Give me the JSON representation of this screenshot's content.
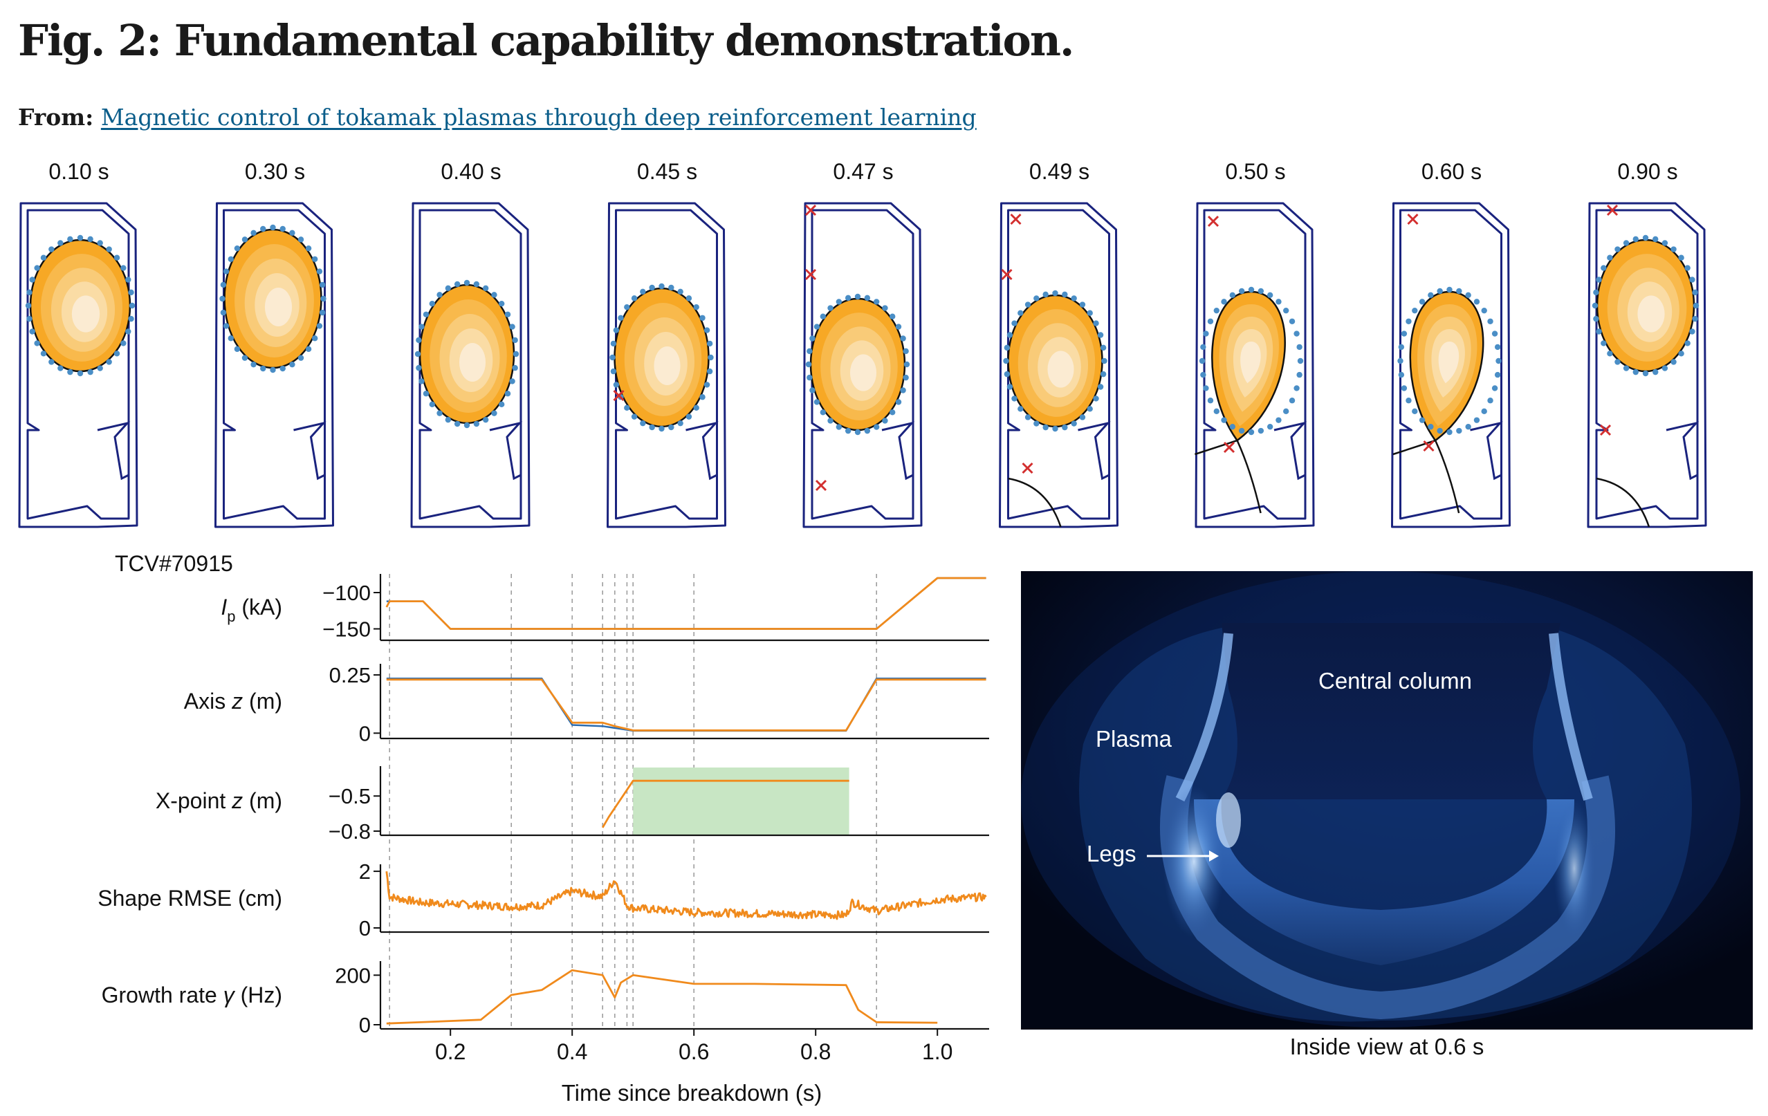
{
  "figure": {
    "title": "Fig. 2: Fundamental capability demonstration.",
    "from_label": "From:",
    "from_link": "Magnetic control of tokamak plasmas through deep reinforcement learning"
  },
  "snapshots": [
    "0.10 s",
    "0.30 s",
    "0.40 s",
    "0.45 s",
    "0.47 s",
    "0.49 s",
    "0.50 s",
    "0.60 s",
    "0.90 s"
  ],
  "shot_label": "TCV#70915",
  "photo": {
    "caption": "Inside view at 0.6 s",
    "label_central": "Central column",
    "label_plasma": "Plasma",
    "label_legs": "Legs"
  },
  "colors": {
    "target": "#2b6cb0",
    "actual": "#f08a1c",
    "region": "#c8e6c4",
    "vessel": "#1a237e",
    "xmark": "#d32f2f"
  },
  "chart_data": {
    "type": "line",
    "xlabel": "Time since breakdown (s)",
    "xlim": [
      0.085,
      1.085
    ],
    "xticks": [
      0.2,
      0.4,
      0.6,
      0.8,
      1.0
    ],
    "xtick_labels": [
      "0.2",
      "0.4",
      "0.6",
      "0.8",
      "1.0"
    ],
    "vlines": [
      0.1,
      0.3,
      0.4,
      0.45,
      0.47,
      0.49,
      0.5,
      0.6,
      0.9
    ],
    "panels": [
      {
        "label_main": "I",
        "label_sub": "p",
        "label_rest": " (kA)",
        "ylim": [
          -160,
          -80
        ],
        "yticks": [
          -100,
          -150
        ],
        "ytick_labels": [
          "−100",
          "−150"
        ],
        "series": [
          {
            "role": "target",
            "x": [
              0.095,
              0.155,
              0.2,
              0.9,
              1.0,
              1.08
            ],
            "y": [
              -112,
              -112,
              -150,
              -150,
              -80,
              -80
            ]
          },
          {
            "role": "actual",
            "x": [
              0.095,
              0.1,
              0.155,
              0.2,
              0.9,
              1.0,
              1.08
            ],
            "y": [
              -120,
              -112,
              -112,
              -150,
              -150,
              -80,
              -80
            ]
          }
        ]
      },
      {
        "label_main": "Axis ",
        "label_sub": "",
        "label_rest": "(m)",
        "label_italic": "z",
        "ylim": [
          -0.005,
          0.28
        ],
        "yticks": [
          0.25,
          0
        ],
        "ytick_labels": [
          "0.25",
          "0"
        ],
        "series": [
          {
            "role": "target",
            "x": [
              0.095,
              0.35,
              0.4,
              0.45,
              0.5,
              0.85,
              0.9,
              1.08
            ],
            "y": [
              0.235,
              0.235,
              0.035,
              0.03,
              0.01,
              0.01,
              0.235,
              0.235
            ]
          },
          {
            "role": "actual",
            "x": [
              0.095,
              0.35,
              0.4,
              0.45,
              0.47,
              0.5,
              0.85,
              0.9,
              1.08
            ],
            "y": [
              0.23,
              0.23,
              0.045,
              0.045,
              0.03,
              0.012,
              0.012,
              0.23,
              0.23
            ]
          }
        ]
      },
      {
        "label_main": "X-point ",
        "label_sub": "",
        "label_rest": "(m)",
        "label_italic": "z",
        "ylim": [
          -0.8,
          -0.28
        ],
        "yticks": [
          -0.5,
          -0.8
        ],
        "ytick_labels": [
          "−0.5",
          "−0.8"
        ],
        "shaded": [
          0.5,
          0.855
        ],
        "series": [
          {
            "role": "target",
            "x": [
              0.5,
              0.855
            ],
            "y": [
              -0.37,
              -0.37
            ]
          },
          {
            "role": "actual",
            "x": [
              0.45,
              0.46,
              0.5,
              0.855
            ],
            "y": [
              -0.77,
              -0.68,
              -0.37,
              -0.37
            ]
          }
        ]
      },
      {
        "label_main": "Shape RMSE (cm)",
        "label_sub": "",
        "label_rest": "",
        "ylim": [
          0,
          2.1
        ],
        "yticks": [
          2,
          0
        ],
        "ytick_labels": [
          "2",
          "0"
        ],
        "series": [
          {
            "role": "actual",
            "noisy": true,
            "x": [
              0.095,
              0.1,
              0.15,
              0.3,
              0.35,
              0.4,
              0.45,
              0.47,
              0.49,
              0.5,
              0.6,
              0.85,
              0.86,
              0.9,
              1.0,
              1.08
            ],
            "y": [
              2.0,
              1.1,
              0.9,
              0.75,
              0.8,
              1.3,
              1.1,
              1.7,
              0.8,
              0.7,
              0.55,
              0.45,
              0.9,
              0.6,
              1.0,
              1.1
            ]
          }
        ]
      },
      {
        "label_main": "Growth rate ",
        "label_sub": "",
        "label_rest": " (Hz)",
        "label_italic": "γ",
        "ylim": [
          0,
          240
        ],
        "yticks": [
          200,
          0
        ],
        "ytick_labels": [
          "200",
          "0"
        ],
        "series": [
          {
            "role": "actual",
            "x": [
              0.095,
              0.15,
              0.25,
              0.3,
              0.35,
              0.4,
              0.45,
              0.47,
              0.48,
              0.5,
              0.6,
              0.7,
              0.85,
              0.87,
              0.9,
              1.0
            ],
            "y": [
              5,
              10,
              20,
              120,
              140,
              220,
              200,
              110,
              170,
              200,
              165,
              165,
              160,
              60,
              10,
              8
            ]
          }
        ]
      }
    ]
  }
}
